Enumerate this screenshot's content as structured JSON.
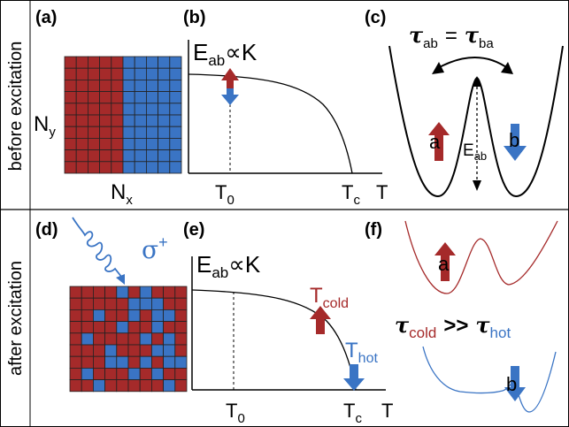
{
  "rows": {
    "top_label": "before excitation",
    "bottom_label": "after excitation"
  },
  "panels": {
    "a": {
      "label": "(a)",
      "axis_y": "N",
      "axis_y_sub": "y",
      "axis_x": "N",
      "axis_x_sub": "x",
      "grid_cols": 10,
      "grid_rows": 9,
      "grid_colors": {
        "red": "#A52A2A",
        "blue": "#3A74C4"
      }
    },
    "b": {
      "label": "(b)",
      "title_main": "E",
      "title_sub": "ab",
      "title_rest": "∝K",
      "ticks": [
        {
          "main": "T",
          "sub": "0"
        },
        {
          "main": "T",
          "sub": "c"
        },
        {
          "main": "T",
          "sub": ""
        }
      ]
    },
    "c": {
      "label": "(c)",
      "equation": {
        "lhs_sub": "ab",
        "eq": "=",
        "rhs_sub": "ba",
        "tau": "τ"
      },
      "state_a": "a",
      "state_b": "b",
      "barrier_main": "E",
      "barrier_sub": "ab"
    },
    "d": {
      "label": "(d)",
      "sigma": "σ",
      "sigma_sup": "+"
    },
    "e": {
      "label": "(e)",
      "title_main": "E",
      "title_sub": "ab",
      "title_rest": "∝K",
      "cold_main": "T",
      "cold_sub": "cold",
      "hot_main": "T",
      "hot_sub": "hot",
      "ticks": [
        {
          "main": "T",
          "sub": "0"
        },
        {
          "main": "T",
          "sub": "c"
        },
        {
          "main": "T",
          "sub": ""
        }
      ]
    },
    "f": {
      "label": "(f)",
      "state_a": "a",
      "state_b": "b",
      "relation": {
        "tau": "τ",
        "left_sub": "cold",
        "op": ">>",
        "right_sub": "hot"
      }
    }
  },
  "colors": {
    "red": "#A52A2A",
    "blue": "#3A74C4",
    "black": "#000000"
  }
}
